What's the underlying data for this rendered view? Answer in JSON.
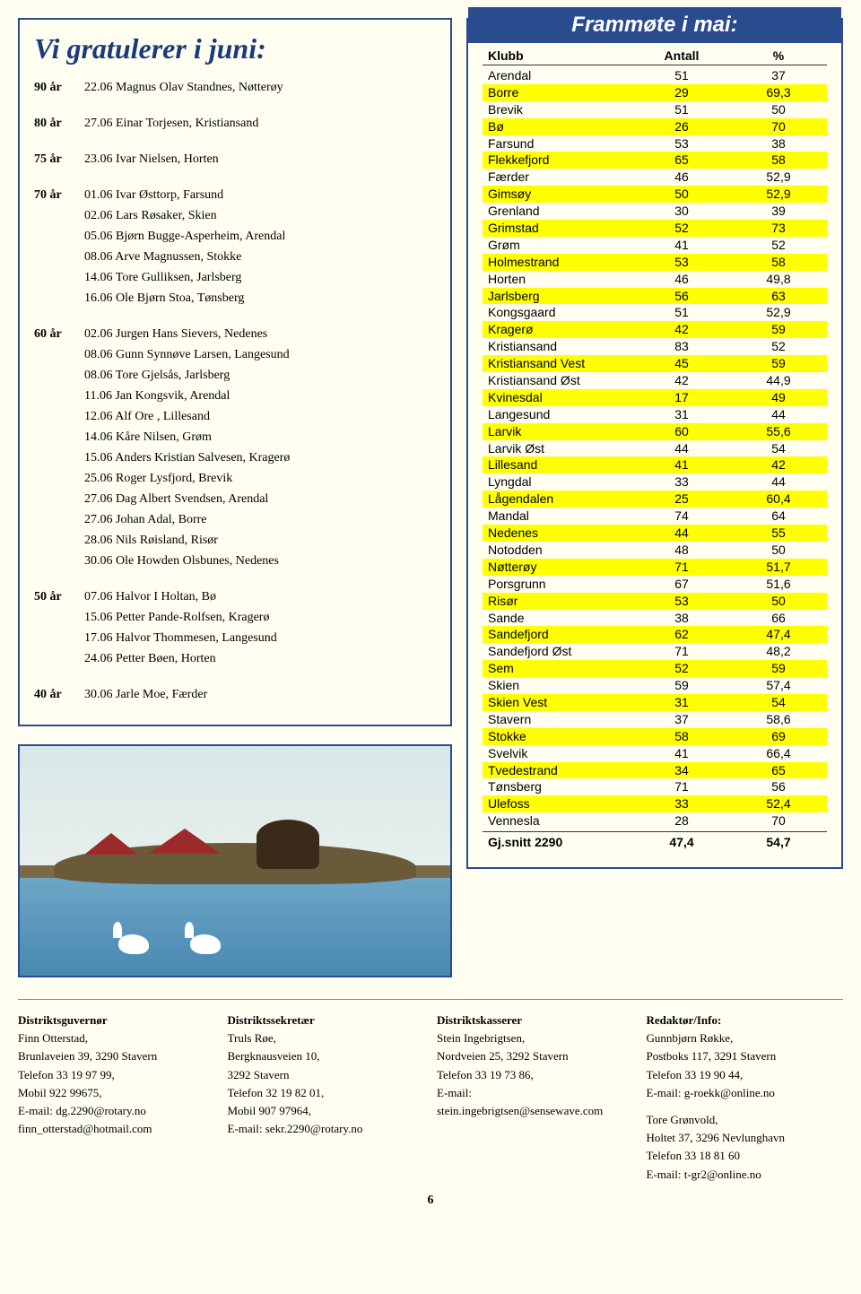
{
  "left": {
    "title": "Vi gratulerer i juni:",
    "groups": [
      {
        "age": "90 år",
        "entries": [
          {
            "date": "22.06",
            "text": "Magnus Olav Standnes, Nøtterøy"
          }
        ]
      },
      {
        "age": "80 år",
        "entries": [
          {
            "date": "27.06",
            "text": "Einar Torjesen, Kristiansand"
          }
        ]
      },
      {
        "age": "75 år",
        "entries": [
          {
            "date": "23.06",
            "text": "Ivar Nielsen, Horten"
          }
        ]
      },
      {
        "age": "70 år",
        "entries": [
          {
            "date": "01.06",
            "text": "Ivar Østtorp, Farsund"
          },
          {
            "date": "02.06",
            "text": "Lars Røsaker, Skien"
          },
          {
            "date": "05.06",
            "text": "Bjørn Bugge-Asperheim, Arendal"
          },
          {
            "date": "08.06",
            "text": "Arve Magnussen, Stokke"
          },
          {
            "date": "14.06",
            "text": "Tore Gulliksen, Jarlsberg"
          },
          {
            "date": "16.06",
            "text": "Ole Bjørn Stoa, Tønsberg"
          }
        ]
      },
      {
        "age": "60 år",
        "entries": [
          {
            "date": "02.06",
            "text": "Jurgen Hans Sievers, Nedenes"
          },
          {
            "date": "08.06",
            "text": "Gunn Synnøve Larsen, Langesund"
          },
          {
            "date": "08.06",
            "text": "Tore Gjelsås, Jarlsberg"
          },
          {
            "date": "11.06",
            "text": "Jan Kongsvik, Arendal"
          },
          {
            "date": "12.06",
            "text": "Alf Ore , Lillesand"
          },
          {
            "date": "14.06",
            "text": "Kåre Nilsen, Grøm"
          },
          {
            "date": "15.06",
            "text": "Anders Kristian Salvesen, Kragerø"
          },
          {
            "date": "25.06",
            "text": "Roger Lysfjord, Brevik"
          },
          {
            "date": "27.06",
            "text": "Dag Albert Svendsen, Arendal"
          },
          {
            "date": "27.06",
            "text": "Johan Adal, Borre"
          },
          {
            "date": "28.06",
            "text": "Nils Røisland, Risør"
          },
          {
            "date": "30.06",
            "text": "Ole Howden Olsbunes, Nedenes"
          }
        ]
      },
      {
        "age": "50 år",
        "entries": [
          {
            "date": "07.06",
            "text": "Halvor I Holtan, Bø"
          },
          {
            "date": "15.06",
            "text": "Petter Pande-Rolfsen, Kragerø"
          },
          {
            "date": "17.06",
            "text": "Halvor Thommesen, Langesund"
          },
          {
            "date": "24.06",
            "text": "Petter Bøen, Horten"
          }
        ]
      },
      {
        "age": "40 år",
        "entries": [
          {
            "date": "30.06",
            "text": "Jarle Moe, Færder"
          }
        ]
      }
    ]
  },
  "right": {
    "header": "Frammøte i mai:",
    "cols": {
      "klubb": "Klubb",
      "antall": "Antall",
      "pct": "%"
    },
    "rows": [
      {
        "klubb": "Arendal",
        "antall": "51",
        "pct": "37",
        "hl": false
      },
      {
        "klubb": "Borre",
        "antall": "29",
        "pct": "69,3",
        "hl": true
      },
      {
        "klubb": "Brevik",
        "antall": "51",
        "pct": "50",
        "hl": false
      },
      {
        "klubb": "Bø",
        "antall": "26",
        "pct": "70",
        "hl": true
      },
      {
        "klubb": "Farsund",
        "antall": "53",
        "pct": "38",
        "hl": false
      },
      {
        "klubb": "Flekkefjord",
        "antall": "65",
        "pct": "58",
        "hl": true
      },
      {
        "klubb": "Færder",
        "antall": "46",
        "pct": "52,9",
        "hl": false
      },
      {
        "klubb": "Gimsøy",
        "antall": "50",
        "pct": "52,9",
        "hl": true
      },
      {
        "klubb": "Grenland",
        "antall": "30",
        "pct": "39",
        "hl": false
      },
      {
        "klubb": "Grimstad",
        "antall": "52",
        "pct": "73",
        "hl": true
      },
      {
        "klubb": "Grøm",
        "antall": "41",
        "pct": "52",
        "hl": false
      },
      {
        "klubb": "Holmestrand",
        "antall": "53",
        "pct": "58",
        "hl": true
      },
      {
        "klubb": "Horten",
        "antall": "46",
        "pct": "49,8",
        "hl": false
      },
      {
        "klubb": "Jarlsberg",
        "antall": "56",
        "pct": "63",
        "hl": true
      },
      {
        "klubb": "Kongsgaard",
        "antall": "51",
        "pct": "52,9",
        "hl": false
      },
      {
        "klubb": "Kragerø",
        "antall": "42",
        "pct": "59",
        "hl": true
      },
      {
        "klubb": "Kristiansand",
        "antall": "83",
        "pct": "52",
        "hl": false
      },
      {
        "klubb": "Kristiansand Vest",
        "antall": "45",
        "pct": "59",
        "hl": true
      },
      {
        "klubb": "Kristiansand Øst",
        "antall": "42",
        "pct": "44,9",
        "hl": false
      },
      {
        "klubb": "Kvinesdal",
        "antall": "17",
        "pct": "49",
        "hl": true
      },
      {
        "klubb": "Langesund",
        "antall": "31",
        "pct": "44",
        "hl": false
      },
      {
        "klubb": "Larvik",
        "antall": "60",
        "pct": "55,6",
        "hl": true
      },
      {
        "klubb": "Larvik Øst",
        "antall": "44",
        "pct": "54",
        "hl": false
      },
      {
        "klubb": "Lillesand",
        "antall": "41",
        "pct": "42",
        "hl": true
      },
      {
        "klubb": "Lyngdal",
        "antall": "33",
        "pct": "44",
        "hl": false
      },
      {
        "klubb": "Lågendalen",
        "antall": "25",
        "pct": "60,4",
        "hl": true
      },
      {
        "klubb": "Mandal",
        "antall": "74",
        "pct": "64",
        "hl": false
      },
      {
        "klubb": "Nedenes",
        "antall": "44",
        "pct": "55",
        "hl": true
      },
      {
        "klubb": "Notodden",
        "antall": "48",
        "pct": "50",
        "hl": false
      },
      {
        "klubb": "Nøtterøy",
        "antall": "71",
        "pct": "51,7",
        "hl": true
      },
      {
        "klubb": "Porsgrunn",
        "antall": "67",
        "pct": "51,6",
        "hl": false
      },
      {
        "klubb": "Risør",
        "antall": "53",
        "pct": "50",
        "hl": true
      },
      {
        "klubb": "Sande",
        "antall": "38",
        "pct": "66",
        "hl": false
      },
      {
        "klubb": "Sandefjord",
        "antall": "62",
        "pct": "47,4",
        "hl": true
      },
      {
        "klubb": "Sandefjord Øst",
        "antall": "71",
        "pct": "48,2",
        "hl": false
      },
      {
        "klubb": "Sem",
        "antall": "52",
        "pct": "59",
        "hl": true
      },
      {
        "klubb": "Skien",
        "antall": "59",
        "pct": "57,4",
        "hl": false
      },
      {
        "klubb": "Skien Vest",
        "antall": "31",
        "pct": "54",
        "hl": true
      },
      {
        "klubb": "Stavern",
        "antall": "37",
        "pct": "58,6",
        "hl": false
      },
      {
        "klubb": "Stokke",
        "antall": "58",
        "pct": "69",
        "hl": true
      },
      {
        "klubb": "Svelvik",
        "antall": "41",
        "pct": "66,4",
        "hl": false
      },
      {
        "klubb": "Tvedestrand",
        "antall": "34",
        "pct": "65",
        "hl": true
      },
      {
        "klubb": "Tønsberg",
        "antall": "71",
        "pct": "56",
        "hl": false
      },
      {
        "klubb": "Ulefoss",
        "antall": "33",
        "pct": "52,4",
        "hl": true
      },
      {
        "klubb": "Vennesla",
        "antall": "28",
        "pct": "70",
        "hl": false
      }
    ],
    "total": {
      "klubb": "Gj.snitt 2290",
      "antall": "47,4",
      "pct": "54,7"
    }
  },
  "footer": {
    "c1": {
      "h": "Distriktsguvernør",
      "lines": [
        "Finn Otterstad,",
        "Brunlaveien 39, 3290 Stavern",
        "Telefon 33 19 97 99,",
        "Mobil 922 99675,",
        "E-mail: dg.2290@rotary.no",
        "finn_otterstad@hotmail.com"
      ]
    },
    "c2": {
      "h": "Distriktssekretær",
      "lines": [
        "Truls Røe,",
        "Bergknausveien 10,",
        "3292 Stavern",
        "Telefon 32 19 82 01,",
        "Mobil 907 97964,",
        "E-mail: sekr.2290@rotary.no"
      ]
    },
    "c3": {
      "h": "Distriktskasserer",
      "lines": [
        "Stein Ingebrigtsen,",
        "Nordveien 25, 3292 Stavern",
        "Telefon 33 19 73 86,",
        "E-mail:",
        "stein.ingebrigtsen@sensewave.com"
      ]
    },
    "c4a": {
      "h": "Redaktør/Info:",
      "lines": [
        "Gunnbjørn Røkke,",
        "Postboks 117, 3291 Stavern",
        "Telefon 33 19 90 44,",
        "E-mail: g-roekk@online.no"
      ]
    },
    "c4b": {
      "lines": [
        "Tore Grønvold,",
        "Holtet 37, 3296 Nevlunghavn",
        "Telefon 33 18 81 60",
        "E-mail: t-gr2@online.no"
      ]
    }
  },
  "pageNum": "6",
  "colors": {
    "border": "#2a4b8d",
    "highlight": "#ffff00",
    "bg": "#fffef0"
  }
}
